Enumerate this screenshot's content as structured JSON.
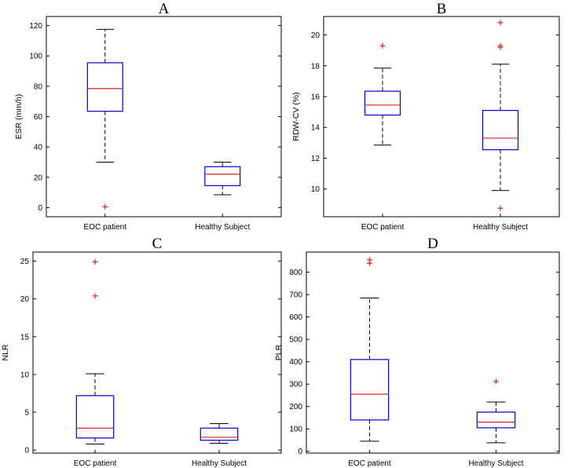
{
  "chart_data": [
    {
      "type": "box",
      "title": "A",
      "xlabel": "",
      "ylabel": "ESR (mm/h)",
      "ylim": [
        -6,
        126
      ],
      "yticks": [
        0,
        20,
        40,
        60,
        80,
        100,
        120
      ],
      "categories": [
        "EOC patient",
        "Healthy Subject"
      ],
      "boxes": [
        {
          "q1": 63.5,
          "median": 78.5,
          "q3": 95.5,
          "whisker_low": 30,
          "whisker_high": 117.5,
          "outliers": [
            0.5
          ]
        },
        {
          "q1": 14.5,
          "median": 22,
          "q3": 27,
          "whisker_low": 8.5,
          "whisker_high": 30,
          "outliers": []
        }
      ]
    },
    {
      "type": "box",
      "title": "B",
      "xlabel": "",
      "ylabel": "RDW-CV (%)",
      "ylim": [
        8.2,
        21.2
      ],
      "yticks": [
        10,
        12,
        14,
        16,
        18,
        20
      ],
      "categories": [
        "EOC patient",
        "Healthy Subject"
      ],
      "boxes": [
        {
          "q1": 14.8,
          "median": 15.45,
          "q3": 16.35,
          "whisker_low": 12.85,
          "whisker_high": 17.85,
          "outliers": [
            19.3
          ]
        },
        {
          "q1": 12.55,
          "median": 13.3,
          "q3": 15.1,
          "whisker_low": 9.9,
          "whisker_high": 18.1,
          "outliers": [
            8.75,
            19.2,
            19.3,
            20.8
          ]
        }
      ]
    },
    {
      "type": "box",
      "title": "C",
      "xlabel": "",
      "ylabel": "NLR",
      "ylim": [
        -0.4,
        26.2
      ],
      "yticks": [
        0,
        5,
        10,
        15,
        20,
        25
      ],
      "categories": [
        "EOC patient",
        "Healthy Subject"
      ],
      "boxes": [
        {
          "q1": 1.6,
          "median": 2.9,
          "q3": 7.2,
          "whisker_low": 0.8,
          "whisker_high": 10.1,
          "outliers": [
            20.4,
            24.9
          ]
        },
        {
          "q1": 1.3,
          "median": 1.7,
          "q3": 2.9,
          "whisker_low": 0.9,
          "whisker_high": 3.5,
          "outliers": []
        }
      ]
    },
    {
      "type": "box",
      "title": "D",
      "xlabel": "",
      "ylabel": "PLR",
      "ylim": [
        -8,
        890
      ],
      "yticks": [
        0,
        100,
        200,
        300,
        400,
        500,
        600,
        700,
        800
      ],
      "categories": [
        "EOC patient",
        "Healthy Subject"
      ],
      "boxes": [
        {
          "q1": 140,
          "median": 255,
          "q3": 410,
          "whisker_low": 45,
          "whisker_high": 685,
          "outliers": [
            840,
            855
          ]
        },
        {
          "q1": 105,
          "median": 130,
          "q3": 175,
          "whisker_low": 38,
          "whisker_high": 220,
          "outliers": [
            312
          ]
        }
      ]
    }
  ],
  "colors": {
    "box": "#0000cc",
    "median": "#e0201e",
    "outlier": "#e0201e",
    "whisker": "#000000",
    "frame": "#000000"
  }
}
